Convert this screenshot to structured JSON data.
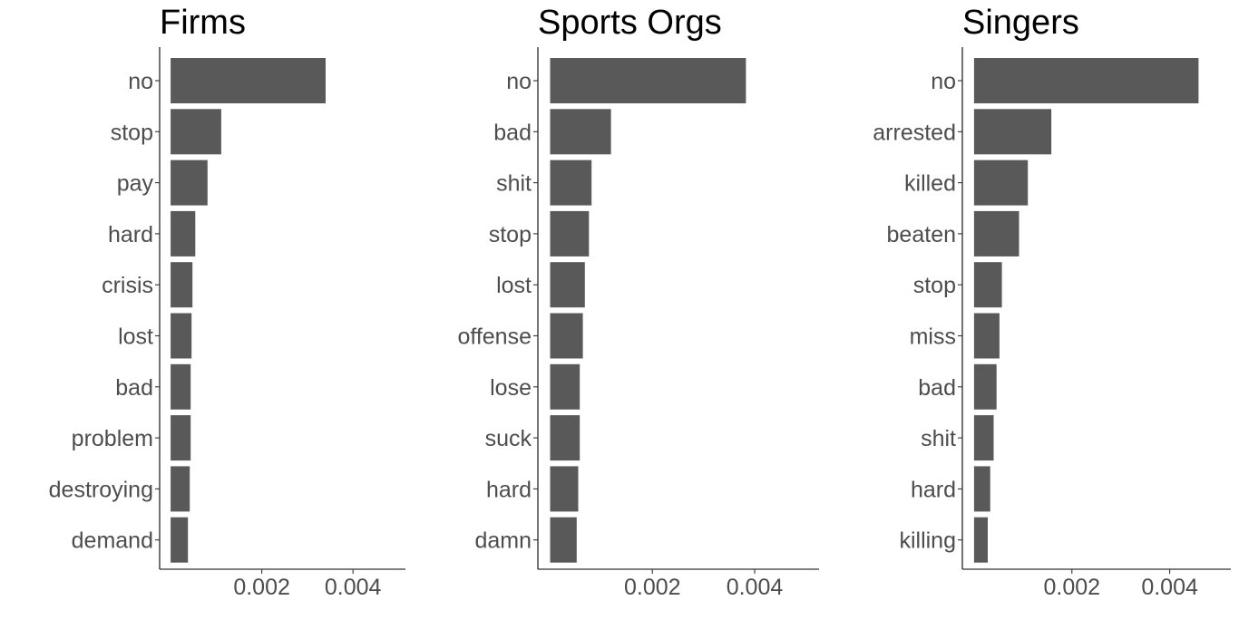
{
  "chart_data": [
    {
      "type": "bar",
      "orientation": "horizontal",
      "title": "Firms",
      "categories": [
        "no",
        "stop",
        "pay",
        "hard",
        "crisis",
        "lost",
        "bad",
        "problem",
        "destroying",
        "demand"
      ],
      "values": [
        0.0034,
        0.00111,
        0.00081,
        0.00054,
        0.00048,
        0.00046,
        0.00044,
        0.00044,
        0.00042,
        0.00038
      ],
      "xlabel": "",
      "ylabel": "",
      "xlim": [
        -0.00024,
        0.00515
      ],
      "xticks": [
        0.002,
        0.004
      ],
      "xtick_labels": [
        "0.002",
        "0.004"
      ]
    },
    {
      "type": "bar",
      "orientation": "horizontal",
      "title": "Sports Orgs",
      "categories": [
        "no",
        "bad",
        "shit",
        "stop",
        "lost",
        "offense",
        "lose",
        "suck",
        "hard",
        "damn"
      ],
      "values": [
        0.00383,
        0.00119,
        0.00081,
        0.00076,
        0.00068,
        0.00064,
        0.00058,
        0.00058,
        0.00055,
        0.00052
      ],
      "xlabel": "",
      "ylabel": "",
      "xlim": [
        -0.00024,
        0.00526
      ],
      "xticks": [
        0.002,
        0.004
      ],
      "xtick_labels": [
        "0.002",
        "0.004"
      ]
    },
    {
      "type": "bar",
      "orientation": "horizontal",
      "title": "Singers",
      "categories": [
        "no",
        "arrested",
        "killed",
        "beaten",
        "stop",
        "miss",
        "bad",
        "shit",
        "hard",
        "killing"
      ],
      "values": [
        0.00459,
        0.00158,
        0.0011,
        0.00092,
        0.00057,
        0.00052,
        0.00046,
        0.0004,
        0.00033,
        0.00028
      ],
      "xlabel": "",
      "ylabel": "",
      "xlim": [
        -0.00024,
        0.00525
      ],
      "xticks": [
        0.002,
        0.004
      ],
      "xtick_labels": [
        "0.002",
        "0.004"
      ]
    }
  ]
}
